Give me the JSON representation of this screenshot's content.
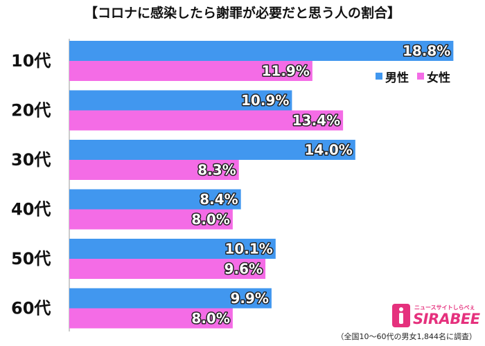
{
  "title": "【コロナに感染したら謝罪が必要だと思う人の割合】",
  "legend": {
    "male": "男性",
    "female": "女性"
  },
  "footnote": "（全国10～60代の男女1,844名に調査）",
  "logo": {
    "tagline": "ニュースサイトしらべぇ",
    "wordmark": "SIRABEE"
  },
  "colors": {
    "male": "#4197ef",
    "female": "#f46ce6",
    "logo": "#e5317d"
  },
  "chart_data": {
    "type": "bar",
    "orientation": "horizontal",
    "title": "【コロナに感染したら謝罪が必要だと思う人の割合】",
    "categories": [
      "10代",
      "20代",
      "30代",
      "40代",
      "50代",
      "60代"
    ],
    "series": [
      {
        "name": "男性",
        "values": [
          18.8,
          10.9,
          14.0,
          8.4,
          10.1,
          9.9
        ],
        "labels": [
          "18.8%",
          "10.9%",
          "14.0%",
          "8.4%",
          "10.1%",
          "9.9%"
        ]
      },
      {
        "name": "女性",
        "values": [
          11.9,
          13.4,
          8.3,
          8.0,
          9.6,
          8.0
        ],
        "labels": [
          "11.9%",
          "13.4%",
          "8.3%",
          "8.0%",
          "9.6%",
          "8.0%"
        ]
      }
    ],
    "xlim": [
      0,
      19.5
    ],
    "unit": "%",
    "legend_position": "top-right",
    "grid": false
  }
}
